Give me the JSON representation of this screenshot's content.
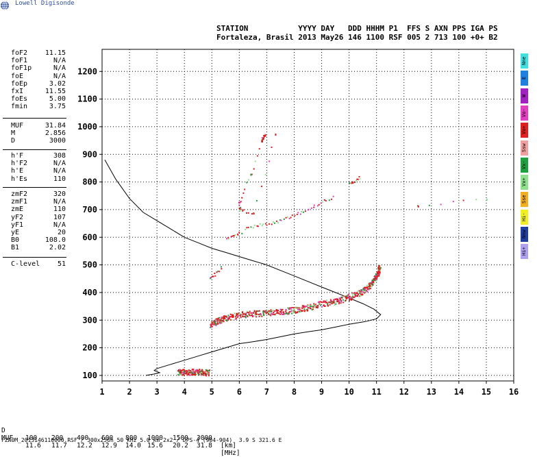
{
  "logo": {
    "text": "Lowell Digisonde"
  },
  "header": {
    "line1": "STATION           YYYY DAY   DDD HHHM P1  FFS S AXN PPS IGA PS",
    "line2": "Fortaleza, Brasil 2013 May26 146 1100 RSF 005 2 713 100 +0+ B2"
  },
  "params": [
    {
      "group": 1,
      "name": "foF2",
      "value": "11.15"
    },
    {
      "group": 1,
      "name": "foF1",
      "value": "N/A"
    },
    {
      "group": 1,
      "name": "foF1p",
      "value": "N/A"
    },
    {
      "group": 1,
      "name": "foE",
      "value": "N/A"
    },
    {
      "group": 1,
      "name": "foEp",
      "value": "3.02"
    },
    {
      "group": 1,
      "name": "fxI",
      "value": "11.55"
    },
    {
      "group": 1,
      "name": "foEs",
      "value": "5.00"
    },
    {
      "group": 1,
      "name": "fmin",
      "value": "3.75"
    },
    {
      "group": 2,
      "name": "MUF",
      "value": "31.84"
    },
    {
      "group": 2,
      "name": "M",
      "value": "2.856"
    },
    {
      "group": 2,
      "name": "D",
      "value": "3000"
    },
    {
      "group": 3,
      "name": "h'F",
      "value": "308"
    },
    {
      "group": 3,
      "name": "h'F2",
      "value": "N/A"
    },
    {
      "group": 3,
      "name": "h'E",
      "value": "N/A"
    },
    {
      "group": 3,
      "name": "h'Es",
      "value": "110"
    },
    {
      "group": 4,
      "name": "zmF2",
      "value": "320"
    },
    {
      "group": 4,
      "name": "zmF1",
      "value": "N/A"
    },
    {
      "group": 4,
      "name": "zmE",
      "value": "110"
    },
    {
      "group": 4,
      "name": "yF2",
      "value": "107"
    },
    {
      "group": 4,
      "name": "yF1",
      "value": "N/A"
    },
    {
      "group": 4,
      "name": "yE",
      "value": "20"
    },
    {
      "group": 4,
      "name": "B0",
      "value": "108.0"
    },
    {
      "group": 4,
      "name": "B1",
      "value": "2.02"
    },
    {
      "group": 5,
      "name": "C-level",
      "value": "51"
    }
  ],
  "legend": [
    {
      "label": "Nne",
      "color": "#40e0e0"
    },
    {
      "label": "E",
      "color": "#2080e0"
    },
    {
      "label": "W",
      "color": "#a020c0"
    },
    {
      "label": "Vo-",
      "color": "#e040c0"
    },
    {
      "label": "Vo+",
      "color": "#e02020"
    },
    {
      "label": "Ssw",
      "color": "#f0a0a0"
    },
    {
      "label": "Vx-",
      "color": "#20a040"
    },
    {
      "label": "Vx+",
      "color": "#90e090"
    },
    {
      "label": "Sse",
      "color": "#f0b020"
    },
    {
      "label": "Hi-",
      "color": "#f0f020"
    },
    {
      "label": "Nnw",
      "color": "#2040a0"
    },
    {
      "label": "Hi+",
      "color": "#b0a0f0"
    }
  ],
  "bottom": {
    "d_label": "D",
    "d_values": [
      "100",
      "200",
      "400",
      "600",
      "800",
      "1000",
      "1500",
      "3000"
    ],
    "d_unit": "[km]",
    "muf_label": "MUF",
    "muf_values": [
      "11.6",
      "11.7",
      "12.2",
      "12.9",
      "14.0",
      "15.6",
      "20.2",
      "31.8"
    ],
    "muf_unit": "[MHz]"
  },
  "footer": "FZA0M_2013146110000.RSF / 300x256h 50 kHz 5.0 km 2x2 / DPS-4 (904-904)  3.9 S 321.6 E",
  "chart_data": {
    "type": "scatter",
    "xlim": [
      1,
      16
    ],
    "ylim": [
      80,
      1280
    ],
    "xticks": [
      1,
      2,
      3,
      4,
      5,
      6,
      7,
      8,
      9,
      10,
      11,
      12,
      13,
      14,
      15,
      16
    ],
    "yticks": [
      100,
      200,
      300,
      400,
      500,
      600,
      700,
      800,
      900,
      1000,
      1100,
      1200
    ],
    "grid": true,
    "profile_line": [
      [
        1.1,
        880
      ],
      [
        1.5,
        810
      ],
      [
        2.0,
        740
      ],
      [
        2.5,
        690
      ],
      [
        3.0,
        660
      ],
      [
        3.5,
        630
      ],
      [
        4.0,
        600
      ],
      [
        4.5,
        580
      ],
      [
        5.0,
        560
      ],
      [
        5.5,
        545
      ],
      [
        6.0,
        530
      ],
      [
        6.5,
        515
      ],
      [
        7.0,
        500
      ],
      [
        7.5,
        480
      ],
      [
        8.0,
        460
      ],
      [
        8.5,
        440
      ],
      [
        9.0,
        420
      ],
      [
        9.5,
        400
      ],
      [
        10.0,
        380
      ],
      [
        10.5,
        360
      ],
      [
        10.9,
        340
      ],
      [
        11.15,
        320
      ],
      [
        11.0,
        305
      ],
      [
        10.6,
        295
      ],
      [
        10.0,
        285
      ],
      [
        9.5,
        275
      ],
      [
        9.0,
        265
      ],
      [
        8.5,
        258
      ],
      [
        8.0,
        250
      ],
      [
        7.5,
        240
      ],
      [
        7.0,
        230
      ],
      [
        6.5,
        222
      ],
      [
        6.0,
        215
      ],
      [
        5.5,
        200
      ],
      [
        5.0,
        185
      ],
      [
        4.5,
        170
      ],
      [
        4.0,
        155
      ],
      [
        3.5,
        140
      ],
      [
        3.0,
        125
      ],
      [
        2.9,
        118
      ],
      [
        3.1,
        110
      ],
      [
        2.9,
        105
      ],
      [
        2.6,
        100
      ]
    ],
    "trace_segments": [
      {
        "name": "F-trace",
        "points": [
          [
            4.95,
            285
          ],
          [
            5.2,
            298
          ],
          [
            5.5,
            310
          ],
          [
            6.0,
            320
          ],
          [
            6.5,
            325
          ],
          [
            7.0,
            328
          ],
          [
            7.5,
            332
          ],
          [
            8.0,
            338
          ],
          [
            8.5,
            348
          ],
          [
            9.0,
            360
          ],
          [
            9.5,
            370
          ],
          [
            10.0,
            385
          ],
          [
            10.4,
            400
          ],
          [
            10.7,
            420
          ],
          [
            10.9,
            445
          ],
          [
            11.05,
            475
          ],
          [
            11.1,
            500
          ]
        ]
      },
      {
        "name": "Es-trace",
        "points": [
          [
            3.75,
            115
          ],
          [
            4.0,
            114
          ],
          [
            4.3,
            114
          ],
          [
            4.6,
            113
          ],
          [
            4.9,
            112
          ]
        ]
      },
      {
        "name": "2F-trace",
        "points": [
          [
            6.2,
            630
          ],
          [
            6.6,
            645
          ],
          [
            7.0,
            650
          ],
          [
            7.4,
            660
          ],
          [
            7.8,
            675
          ],
          [
            8.2,
            690
          ],
          [
            8.6,
            710
          ],
          [
            9.0,
            730
          ],
          [
            9.5,
            750
          ]
        ]
      },
      {
        "name": "2F-upper",
        "points": [
          [
            10.0,
            795
          ],
          [
            10.2,
            805
          ],
          [
            10.4,
            820
          ]
        ]
      },
      {
        "name": "2F-lower",
        "points": [
          [
            5.5,
            595
          ],
          [
            5.8,
            610
          ],
          [
            6.1,
            620
          ]
        ]
      },
      {
        "name": "2Es",
        "points": [
          [
            4.9,
            450
          ],
          [
            5.1,
            470
          ],
          [
            5.4,
            495
          ]
        ]
      },
      {
        "name": "scatter-high",
        "points": [
          [
            6.8,
            950
          ],
          [
            6.85,
            960
          ],
          [
            6.9,
            970
          ],
          [
            6.4,
            830
          ],
          [
            6.0,
            730
          ],
          [
            6.0,
            700
          ],
          [
            6.5,
            690
          ],
          [
            7.3,
            975
          ]
        ]
      },
      {
        "name": "scatter-far",
        "points": [
          [
            12.5,
            715
          ],
          [
            15.0,
            740
          ]
        ]
      }
    ]
  }
}
